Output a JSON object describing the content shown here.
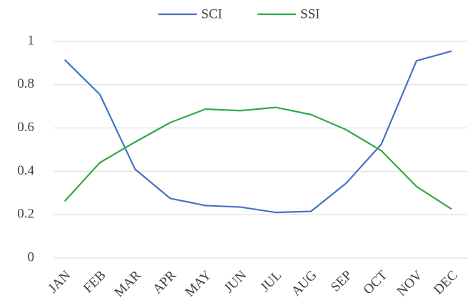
{
  "chart_data": {
    "type": "line",
    "categories": [
      "JAN",
      "FEB",
      "MAR",
      "APR",
      "MAY",
      "JUN",
      "JUL",
      "AUG",
      "SEP",
      "OCT",
      "NOV",
      "DEC"
    ],
    "series": [
      {
        "name": "SCI",
        "color": "#4472c4",
        "values": [
          0.915,
          0.755,
          0.41,
          0.275,
          0.242,
          0.235,
          0.21,
          0.215,
          0.345,
          0.525,
          0.91,
          0.955
        ]
      },
      {
        "name": "SSI",
        "color": "#2eaa4a",
        "values": [
          0.262,
          0.44,
          0.535,
          0.625,
          0.687,
          0.68,
          0.695,
          0.662,
          0.592,
          0.495,
          0.33,
          0.225
        ]
      }
    ],
    "ylim": [
      0,
      1
    ],
    "yticks": [
      0,
      0.2,
      0.4,
      0.6,
      0.8,
      1
    ],
    "grid": true,
    "legend": "top"
  }
}
